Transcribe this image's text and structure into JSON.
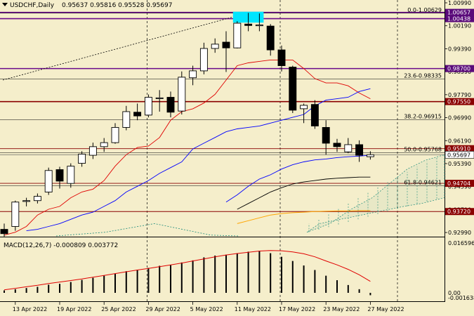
{
  "header": {
    "symbol": "USDCHF,Daily",
    "ohlc": "0.95637 0.95816 0.95528 0.95697"
  },
  "macd_label": "MACD(12,26,7) -0.000809 0.003772",
  "colors": {
    "background": "#f5eecb",
    "bull_body": "#ffffff",
    "bear_body": "#000000",
    "tenkan": "#e00000",
    "kijun": "#0000ff",
    "ma_long": "#000000",
    "ma_orange": "#ffa500",
    "cloud": "#1a8a7a",
    "level_purple": "#6a0a8a",
    "level_darkred": "#8a0000",
    "price_tag_purple": "#5a0a7a",
    "price_tag_darkred": "#8a0000",
    "highlight": "#00e5ff"
  },
  "chart_data": [
    {
      "type": "candlestick",
      "title": "USDCHF,Daily",
      "ylim": [
        0.9287,
        1.0099
      ],
      "x": [
        "12 Apr 2022",
        "13 Apr 2022",
        "14 Apr 2022",
        "15 Apr 2022",
        "18 Apr 2022",
        "19 Apr 2022",
        "20 Apr 2022",
        "21 Apr 2022",
        "22 Apr 2022",
        "25 Apr 2022",
        "26 Apr 2022",
        "27 Apr 2022",
        "28 Apr 2022",
        "29 Apr 2022",
        "2 May 2022",
        "3 May 2022",
        "4 May 2022",
        "5 May 2022",
        "6 May 2022",
        "9 May 2022",
        "10 May 2022",
        "11 May 2022",
        "12 May 2022",
        "13 May 2022",
        "16 May 2022",
        "17 May 2022",
        "18 May 2022",
        "19 May 2022",
        "20 May 2022",
        "23 May 2022",
        "24 May 2022",
        "25 May 2022",
        "26 May 2022",
        "27 May 2022"
      ],
      "ohlc": [
        {
          "o": 0.931,
          "h": 0.933,
          "l": 0.9285,
          "c": 0.9295
        },
        {
          "o": 0.932,
          "h": 0.941,
          "l": 0.9305,
          "c": 0.9405
        },
        {
          "o": 0.9408,
          "h": 0.942,
          "l": 0.939,
          "c": 0.941
        },
        {
          "o": 0.941,
          "h": 0.9435,
          "l": 0.94,
          "c": 0.9425
        },
        {
          "o": 0.944,
          "h": 0.9525,
          "l": 0.943,
          "c": 0.9515
        },
        {
          "o": 0.9518,
          "h": 0.9528,
          "l": 0.9452,
          "c": 0.9478
        },
        {
          "o": 0.947,
          "h": 0.954,
          "l": 0.9455,
          "c": 0.953
        },
        {
          "o": 0.954,
          "h": 0.9582,
          "l": 0.9528,
          "c": 0.9572
        },
        {
          "o": 0.9568,
          "h": 0.9612,
          "l": 0.9555,
          "c": 0.9598
        },
        {
          "o": 0.9598,
          "h": 0.9628,
          "l": 0.958,
          "c": 0.9612
        },
        {
          "o": 0.9612,
          "h": 0.968,
          "l": 0.9608,
          "c": 0.9665
        },
        {
          "o": 0.9665,
          "h": 0.974,
          "l": 0.9655,
          "c": 0.972
        },
        {
          "o": 0.9718,
          "h": 0.9748,
          "l": 0.969,
          "c": 0.9705
        },
        {
          "o": 0.9708,
          "h": 0.978,
          "l": 0.97,
          "c": 0.977
        },
        {
          "o": 0.9768,
          "h": 0.9795,
          "l": 0.972,
          "c": 0.9768
        },
        {
          "o": 0.977,
          "h": 0.979,
          "l": 0.97,
          "c": 0.9718
        },
        {
          "o": 0.9722,
          "h": 0.986,
          "l": 0.971,
          "c": 0.984
        },
        {
          "o": 0.9838,
          "h": 0.988,
          "l": 0.9812,
          "c": 0.9862
        },
        {
          "o": 0.9862,
          "h": 0.996,
          "l": 0.985,
          "c": 0.994
        },
        {
          "o": 0.994,
          "h": 0.9975,
          "l": 0.9925,
          "c": 0.9955
        },
        {
          "o": 0.9962,
          "h": 1.0,
          "l": 0.9858,
          "c": 0.9942
        },
        {
          "o": 0.9942,
          "h": 1.0035,
          "l": 0.994,
          "c": 1.0028
        },
        {
          "o": 1.0025,
          "h": 1.0064,
          "l": 1.0,
          "c": 1.002
        },
        {
          "o": 1.002,
          "h": 1.0062,
          "l": 1.0,
          "c": 1.0022
        },
        {
          "o": 1.0018,
          "h": 1.0025,
          "l": 0.9915,
          "c": 0.9935
        },
        {
          "o": 0.9935,
          "h": 0.995,
          "l": 0.986,
          "c": 0.988
        },
        {
          "o": 0.9875,
          "h": 0.988,
          "l": 0.9715,
          "c": 0.9725
        },
        {
          "o": 0.973,
          "h": 0.9748,
          "l": 0.968,
          "c": 0.9742
        },
        {
          "o": 0.9745,
          "h": 0.976,
          "l": 0.966,
          "c": 0.967
        },
        {
          "o": 0.9665,
          "h": 0.969,
          "l": 0.957,
          "c": 0.961
        },
        {
          "o": 0.961,
          "h": 0.9625,
          "l": 0.958,
          "c": 0.9598
        },
        {
          "o": 0.958,
          "h": 0.9628,
          "l": 0.9575,
          "c": 0.9605
        },
        {
          "o": 0.9605,
          "h": 0.962,
          "l": 0.9545,
          "c": 0.9568
        },
        {
          "o": 0.9563,
          "h": 0.9582,
          "l": 0.9553,
          "c": 0.957
        }
      ],
      "indicators": [
        {
          "color": "#e00000",
          "values": [
            0.929,
            0.93,
            0.932,
            0.936,
            0.938,
            0.939,
            0.942,
            0.944,
            0.945,
            0.948,
            0.953,
            0.957,
            0.9595,
            0.96,
            0.963,
            0.969,
            0.972,
            0.973,
            0.975,
            0.978,
            0.983,
            0.988,
            0.989,
            0.9895,
            0.99,
            0.99,
            0.99,
            0.987,
            0.9835,
            0.982,
            0.982,
            0.981,
            0.9785,
            0.9765
          ]
        },
        {
          "color": "#0000ff",
          "values": [
            null,
            null,
            0.9305,
            0.931,
            0.932,
            0.933,
            0.9345,
            0.936,
            0.937,
            0.939,
            0.941,
            0.944,
            0.946,
            0.948,
            0.9505,
            0.9525,
            0.9545,
            0.959,
            0.961,
            0.963,
            0.965,
            0.966,
            0.9665,
            0.967,
            0.968,
            0.969,
            0.97,
            0.971,
            0.974,
            0.976,
            0.9765,
            0.977,
            0.979,
            0.98
          ]
        },
        {
          "color": "#0000ff",
          "values": [
            null,
            null,
            null,
            null,
            null,
            null,
            null,
            null,
            null,
            null,
            null,
            null,
            null,
            null,
            null,
            null,
            null,
            null,
            null,
            null,
            0.9405,
            0.943,
            0.946,
            0.9485,
            0.95,
            0.952,
            0.9535,
            0.9545,
            0.9552,
            0.9555,
            0.956,
            0.9563,
            0.9565,
            0.9568
          ]
        },
        {
          "color": "#000000",
          "values": [
            null,
            null,
            null,
            null,
            null,
            null,
            null,
            null,
            null,
            null,
            null,
            null,
            null,
            null,
            null,
            null,
            null,
            null,
            null,
            null,
            null,
            0.938,
            0.94,
            0.942,
            0.944,
            0.9455,
            0.9468,
            0.9475,
            0.948,
            0.9485,
            0.9488,
            0.949,
            0.9492,
            0.9492
          ]
        },
        {
          "color": "#ffa500",
          "values": [
            null,
            null,
            null,
            null,
            null,
            null,
            null,
            null,
            null,
            null,
            null,
            null,
            null,
            null,
            null,
            null,
            null,
            null,
            null,
            null,
            null,
            0.933,
            0.934,
            0.935,
            0.936,
            0.9365,
            0.9368,
            0.937,
            0.9372,
            0.9373,
            0.9374,
            0.9374,
            0.9375,
            0.9375
          ]
        }
      ],
      "price_axis_ticks": [
        "1.00990",
        "1.00190",
        "0.99390",
        "0.98590",
        "0.97790",
        "0.96990",
        "0.96190",
        "0.95390",
        "0.94590",
        "0.93790",
        "0.92990"
      ],
      "horizontal_levels": [
        {
          "price": 1.00657,
          "label": "1.00657",
          "style": "purple"
        },
        {
          "price": 1.00438,
          "label": "1.00438",
          "style": "purple"
        },
        {
          "price": 0.987,
          "label": "0.98700",
          "style": "purple"
        },
        {
          "price": 0.9755,
          "label": "0.97550",
          "style": "darkred"
        },
        {
          "price": 0.9591,
          "label": "0.95910",
          "style": "darkred"
        },
        {
          "price": 0.95697,
          "label": "0.95697",
          "style": "current"
        },
        {
          "price": 0.94704,
          "label": "0.94704",
          "style": "darkred"
        },
        {
          "price": 0.9372,
          "label": "0.93720",
          "style": "darkred"
        }
      ],
      "fib_levels": [
        {
          "price": 1.00629,
          "label": "0.0-1.00629"
        },
        {
          "price": 0.98335,
          "label": "23.6-0.98335"
        },
        {
          "price": 0.96915,
          "label": "38.2-0.96915"
        },
        {
          "price": 0.95768,
          "label": "50.0-0.95768"
        },
        {
          "price": 0.94621,
          "label": "61.8-0.94621"
        }
      ],
      "x_axis_labels": [
        "13 Apr 2022",
        "19 Apr 2022",
        "25 Apr 2022",
        "29 Apr 2022",
        "5 May 2022",
        "11 May 2022",
        "17 May 2022",
        "23 May 2022",
        "27 May 2022"
      ]
    },
    {
      "type": "bar",
      "title": "MACD(12,26,7)",
      "ylim": [
        -0.001638,
        0.016596
      ],
      "values": [
        0.0008,
        0.0012,
        0.0016,
        0.002,
        0.0027,
        0.003,
        0.0036,
        0.0043,
        0.005,
        0.0057,
        0.0063,
        0.0072,
        0.0077,
        0.0083,
        0.009,
        0.0093,
        0.0101,
        0.0108,
        0.0118,
        0.0124,
        0.0127,
        0.0132,
        0.0137,
        0.014,
        0.0132,
        0.012,
        0.0106,
        0.0091,
        0.0076,
        0.0057,
        0.0042,
        0.0026,
        0.0012,
        -0.0008
      ],
      "signal": [
        0.001,
        0.0015,
        0.002,
        0.0025,
        0.0031,
        0.0036,
        0.0041,
        0.0046,
        0.0052,
        0.0058,
        0.0064,
        0.007,
        0.0076,
        0.0081,
        0.0087,
        0.0093,
        0.0099,
        0.0106,
        0.0113,
        0.012,
        0.0126,
        0.0131,
        0.0135,
        0.0139,
        0.0141,
        0.014,
        0.0136,
        0.013,
        0.012,
        0.0106,
        0.0093,
        0.0078,
        0.006,
        0.0038
      ],
      "axis_ticks": [
        "0.016596",
        "0.00",
        "-0.001638"
      ]
    }
  ]
}
